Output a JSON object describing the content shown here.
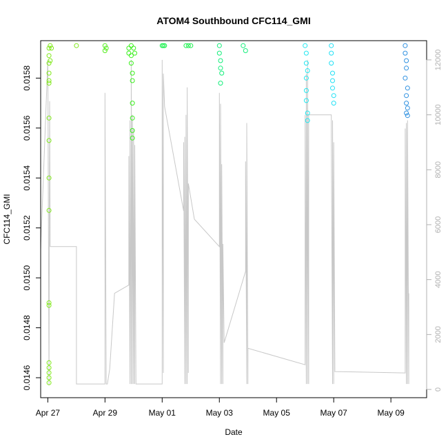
{
  "chart_data": {
    "type": "scatter",
    "title": "ATOM4 Southbound CFC114_GMI",
    "xlabel": "Date",
    "ylabel": "CFC114_GMI",
    "x_tick_labels": [
      "Apr 27",
      "Apr 29",
      "May 01",
      "May 03",
      "May 05",
      "May 07",
      "May 09"
    ],
    "y_tick_labels": [
      "0.0146",
      "0.0148",
      "0.0150",
      "0.0152",
      "0.0154",
      "0.0156",
      "0.0158"
    ],
    "y2_tick_labels": [
      "0",
      "2000",
      "4000",
      "6000",
      "8000",
      "10000",
      "12000"
    ],
    "xlim": [
      "2017-04-26T18:00",
      "2017-05-10T06:00"
    ],
    "ylim": [
      0.01452,
      0.01595
    ],
    "y2lim": [
      -300,
      12700
    ],
    "grid": false,
    "scatter_series": [
      {
        "color": "#7FE818",
        "points": [
          [
            "2017-04-27T01:00",
            0.01592
          ],
          [
            "2017-04-27T01:00",
            0.01589
          ],
          [
            "2017-04-27T01:00",
            0.01586
          ],
          [
            "2017-04-27T01:00",
            0.01582
          ],
          [
            "2017-04-27T01:00",
            0.01579
          ],
          [
            "2017-04-27T01:00",
            0.01578
          ],
          [
            "2017-04-27T01:00",
            0.01564
          ],
          [
            "2017-04-27T01:00",
            0.01555
          ],
          [
            "2017-04-27T01:00",
            0.0154
          ],
          [
            "2017-04-27T01:00",
            0.01527
          ],
          [
            "2017-04-27T01:00",
            0.0149
          ],
          [
            "2017-04-27T01:00",
            0.01489
          ],
          [
            "2017-04-27T01:00",
            0.01466
          ],
          [
            "2017-04-27T01:00",
            0.01464
          ],
          [
            "2017-04-27T01:00",
            0.01462
          ],
          [
            "2017-04-27T01:00",
            0.0146
          ],
          [
            "2017-04-27T01:00",
            0.01458
          ],
          [
            "2017-04-27T02:00",
            0.01593
          ],
          [
            "2017-04-27T02:00",
            0.01587
          ],
          [
            "2017-04-27T03:00",
            0.01592
          ],
          [
            "2017-04-28T00:00",
            0.01593
          ]
        ]
      },
      {
        "color": "#52ED1A",
        "points": [
          [
            "2017-04-29T00:00",
            0.01593
          ],
          [
            "2017-04-29T00:00",
            0.01591
          ],
          [
            "2017-04-29T01:00",
            0.01592
          ]
        ]
      },
      {
        "color": "#3AF01C",
        "points": [
          [
            "2017-04-29T20:00",
            0.01592
          ],
          [
            "2017-04-29T20:00",
            0.0159
          ],
          [
            "2017-04-29T22:00",
            0.01593
          ],
          [
            "2017-04-29T22:00",
            0.01589
          ],
          [
            "2017-04-29T22:00",
            0.01586
          ],
          [
            "2017-04-29T23:00",
            0.01582
          ],
          [
            "2017-04-29T23:00",
            0.01579
          ],
          [
            "2017-04-29T23:00",
            0.0157
          ],
          [
            "2017-04-29T23:00",
            0.01564
          ],
          [
            "2017-04-29T23:00",
            0.01559
          ],
          [
            "2017-04-29T23:00",
            0.01556
          ],
          [
            "2017-04-30T00:00",
            0.01592
          ],
          [
            "2017-04-30T01:00",
            0.0159
          ]
        ]
      },
      {
        "color": "#16F04A",
        "points": [
          [
            "2017-05-01T00:00",
            0.01593
          ],
          [
            "2017-05-01T01:00",
            0.01593
          ],
          [
            "2017-05-01T02:00",
            0.01593
          ],
          [
            "2017-05-01T20:00",
            0.01593
          ],
          [
            "2017-05-01T22:00",
            0.01593
          ],
          [
            "2017-05-02T00:00",
            0.01593
          ]
        ]
      },
      {
        "color": "#12EE7A",
        "points": [
          [
            "2017-05-03T00:00",
            0.01593
          ],
          [
            "2017-05-03T00:00",
            0.0159
          ],
          [
            "2017-05-03T01:00",
            0.01587
          ],
          [
            "2017-05-03T01:00",
            0.01584
          ],
          [
            "2017-05-03T02:00",
            0.01582
          ],
          [
            "2017-05-03T01:00",
            0.01578
          ],
          [
            "2017-05-03T20:00",
            0.01593
          ],
          [
            "2017-05-03T22:00",
            0.01591
          ]
        ]
      },
      {
        "color": "#22E8F0",
        "points": [
          [
            "2017-05-06T00:00",
            0.01593
          ],
          [
            "2017-05-06T01:00",
            0.0159
          ],
          [
            "2017-05-06T01:00",
            0.01586
          ],
          [
            "2017-05-06T02:00",
            0.01583
          ],
          [
            "2017-05-06T01:00",
            0.0158
          ],
          [
            "2017-05-06T01:00",
            0.01575
          ],
          [
            "2017-05-06T01:00",
            0.01571
          ],
          [
            "2017-05-06T02:00",
            0.01566
          ],
          [
            "2017-05-06T02:00",
            0.01563
          ]
        ]
      },
      {
        "color": "#20E0F5",
        "points": [
          [
            "2017-05-06T22:00",
            0.01593
          ],
          [
            "2017-05-06T22:00",
            0.0159
          ],
          [
            "2017-05-06T22:00",
            0.01586
          ],
          [
            "2017-05-06T23:00",
            0.01582
          ],
          [
            "2017-05-06T23:00",
            0.01579
          ],
          [
            "2017-05-06T23:00",
            0.01576
          ],
          [
            "2017-05-07T00:00",
            0.01573
          ],
          [
            "2017-05-07T00:00",
            0.0157
          ]
        ]
      },
      {
        "color": "#2E90E0",
        "points": [
          [
            "2017-05-09T12:00",
            0.01593
          ],
          [
            "2017-05-09T12:00",
            0.0159
          ],
          [
            "2017-05-09T13:00",
            0.01587
          ],
          [
            "2017-05-09T13:00",
            0.01584
          ],
          [
            "2017-05-09T12:00",
            0.0158
          ],
          [
            "2017-05-09T14:00",
            0.01576
          ],
          [
            "2017-05-09T13:00",
            0.01573
          ],
          [
            "2017-05-09T13:00",
            0.0157
          ],
          [
            "2017-05-09T14:00",
            0.01568
          ],
          [
            "2017-05-09T13:00",
            0.01566
          ],
          [
            "2017-05-09T14:00",
            0.01565
          ]
        ]
      }
    ],
    "altitude_series": {
      "color": "#C8C8C8",
      "points": [
        [
          "2017-04-26T18:00",
          5100
        ],
        [
          "2017-04-27T00:00",
          12000
        ],
        [
          "2017-04-27T01:00",
          150
        ],
        [
          "2017-04-27T01:30",
          10500
        ],
        [
          "2017-04-27T02:00",
          5200
        ],
        [
          "2017-04-28T00:00",
          5200
        ],
        [
          "2017-04-28T00:00",
          200
        ],
        [
          "2017-04-29T00:00",
          200
        ],
        [
          "2017-04-29T00:00",
          10800
        ],
        [
          "2017-04-29T01:00",
          200
        ],
        [
          "2017-04-29T02:00",
          200
        ],
        [
          "2017-04-29T04:00",
          750
        ],
        [
          "2017-04-29T08:00",
          3500
        ],
        [
          "2017-04-29T20:00",
          3800
        ],
        [
          "2017-04-29T20:00",
          8500
        ],
        [
          "2017-04-29T21:00",
          200
        ],
        [
          "2017-04-29T21:00",
          9800
        ],
        [
          "2017-04-29T22:00",
          200
        ],
        [
          "2017-04-29T22:00",
          12000
        ],
        [
          "2017-04-29T23:00",
          200
        ],
        [
          "2017-04-29T23:00",
          10000
        ],
        [
          "2017-04-30T00:00",
          200
        ],
        [
          "2017-04-30T00:00",
          9500
        ],
        [
          "2017-04-30T01:00",
          200
        ],
        [
          "2017-04-30T01:00",
          8900
        ],
        [
          "2017-04-30T02:00",
          200
        ],
        [
          "2017-05-01T00:00",
          200
        ],
        [
          "2017-05-01T00:00",
          12000
        ],
        [
          "2017-05-01T01:00",
          600
        ],
        [
          "2017-05-01T01:00",
          11500
        ],
        [
          "2017-05-01T02:00",
          10300
        ],
        [
          "2017-05-01T18:00",
          6500
        ],
        [
          "2017-05-01T18:00",
          9000
        ],
        [
          "2017-05-01T19:00",
          200
        ],
        [
          "2017-05-01T19:00",
          9200
        ],
        [
          "2017-05-01T20:00",
          200
        ],
        [
          "2017-05-01T20:00",
          10000
        ],
        [
          "2017-05-01T21:00",
          200
        ],
        [
          "2017-05-01T21:00",
          11000
        ],
        [
          "2017-05-01T22:00",
          600
        ],
        [
          "2017-05-01T22:00",
          7500
        ],
        [
          "2017-05-02T03:00",
          6200
        ],
        [
          "2017-05-03T00:00",
          5200
        ],
        [
          "2017-05-03T00:00",
          10800
        ],
        [
          "2017-05-03T01:00",
          200
        ],
        [
          "2017-05-03T01:00",
          10400
        ],
        [
          "2017-05-03T02:00",
          200
        ],
        [
          "2017-05-03T02:00",
          8200
        ],
        [
          "2017-05-03T03:00",
          200
        ],
        [
          "2017-05-03T03:00",
          5300
        ],
        [
          "2017-05-03T04:00",
          1700
        ],
        [
          "2017-05-03T22:00",
          4300
        ],
        [
          "2017-05-03T22:00",
          8300
        ],
        [
          "2017-05-03T23:00",
          200
        ],
        [
          "2017-05-03T23:00",
          9700
        ],
        [
          "2017-05-04T00:00",
          200
        ],
        [
          "2017-05-04T00:00",
          1500
        ],
        [
          "2017-05-06T00:00",
          900
        ],
        [
          "2017-05-06T00:00",
          10000
        ],
        [
          "2017-05-06T01:00",
          200
        ],
        [
          "2017-05-06T01:00",
          11500
        ],
        [
          "2017-05-06T02:00",
          200
        ],
        [
          "2017-05-06T02:00",
          12000
        ],
        [
          "2017-05-06T03:00",
          200
        ],
        [
          "2017-05-06T03:00",
          10000
        ],
        [
          "2017-05-06T22:00",
          10000
        ],
        [
          "2017-05-06T22:00",
          9400
        ],
        [
          "2017-05-06T23:00",
          200
        ],
        [
          "2017-05-06T23:00",
          9800
        ],
        [
          "2017-05-07T00:00",
          200
        ],
        [
          "2017-05-07T00:00",
          9000
        ],
        [
          "2017-05-07T01:00",
          650
        ],
        [
          "2017-05-09T12:00",
          600
        ],
        [
          "2017-05-09T12:00",
          9500
        ],
        [
          "2017-05-09T13:00",
          200
        ],
        [
          "2017-05-09T13:00",
          9700
        ],
        [
          "2017-05-09T14:00",
          200
        ],
        [
          "2017-05-09T14:00",
          9800
        ],
        [
          "2017-05-09T15:00",
          200
        ],
        [
          "2017-05-09T15:00",
          3500
        ]
      ]
    }
  }
}
